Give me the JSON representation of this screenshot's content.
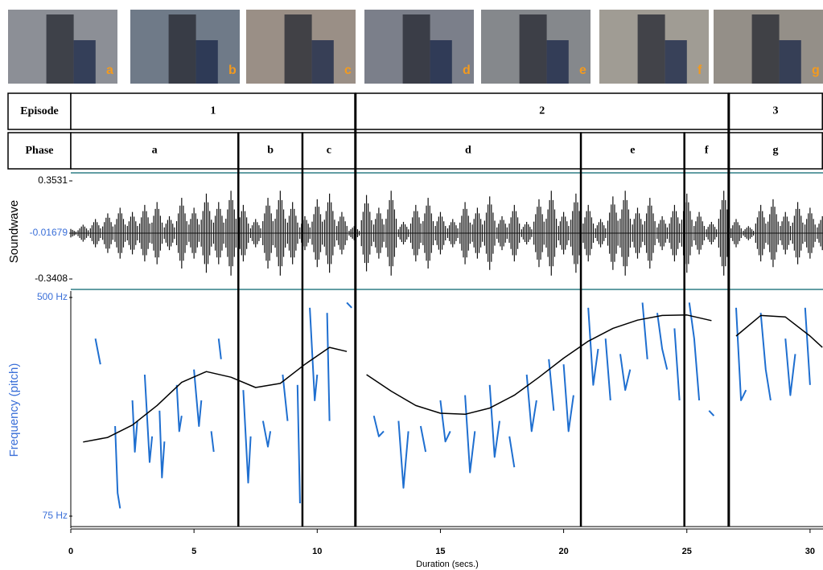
{
  "chart_data": {
    "type": "soundwave-pitch",
    "photos": [
      "a",
      "b",
      "c",
      "d",
      "e",
      "f",
      "g"
    ],
    "episode_header": "Episode",
    "phase_header": "Phase",
    "episodes": [
      {
        "label": "1",
        "start": 0,
        "end": 11.55
      },
      {
        "label": "2",
        "start": 11.55,
        "end": 26.7
      },
      {
        "label": "3",
        "start": 26.7,
        "end": 30.5
      }
    ],
    "phases": [
      {
        "label": "a",
        "start": 0,
        "end": 6.8
      },
      {
        "label": "b",
        "start": 6.8,
        "end": 9.4
      },
      {
        "label": "c",
        "start": 9.4,
        "end": 11.55
      },
      {
        "label": "d",
        "start": 11.55,
        "end": 20.7
      },
      {
        "label": "e",
        "start": 20.7,
        "end": 24.9
      },
      {
        "label": "f",
        "start": 24.9,
        "end": 26.7
      },
      {
        "label": "g",
        "start": 26.7,
        "end": 30.5
      }
    ],
    "xlabel": "Duration (secs.)",
    "xlim": [
      0,
      30.5
    ],
    "xticks": [
      0,
      5,
      10,
      15,
      20,
      25,
      30
    ],
    "soundwave": {
      "ylabel": "Soundwave",
      "color": "#111111",
      "ylim": [
        -0.3408,
        0.3531
      ],
      "yticks": [
        0.3531,
        -0.01679,
        -0.3408
      ],
      "center": -0.01679,
      "x": [
        0,
        0.5,
        1,
        1.5,
        2,
        2.5,
        3,
        3.5,
        4,
        4.5,
        5,
        5.5,
        6,
        6.5,
        7,
        7.5,
        8,
        8.5,
        9,
        9.5,
        10,
        10.5,
        11,
        11.5,
        12,
        12.5,
        13,
        13.5,
        14,
        14.5,
        15,
        15.5,
        16,
        16.5,
        17,
        17.5,
        18,
        18.5,
        19,
        19.5,
        20,
        20.5,
        21,
        21.5,
        22,
        22.5,
        23,
        23.5,
        24,
        24.5,
        25,
        25.5,
        26,
        26.5,
        27,
        27.5,
        28,
        28.5,
        29,
        29.5,
        30,
        30.5
      ],
      "values": [
        0.03,
        0.06,
        0.1,
        0.14,
        0.18,
        0.15,
        0.2,
        0.22,
        0.12,
        0.25,
        0.18,
        0.28,
        0.22,
        0.3,
        0.2,
        0.1,
        0.25,
        0.3,
        0.22,
        0.12,
        0.24,
        0.28,
        0.15,
        0.05,
        0.27,
        0.18,
        0.3,
        0.08,
        0.2,
        0.25,
        0.15,
        0.1,
        0.22,
        0.18,
        0.26,
        0.12,
        0.2,
        0.08,
        0.24,
        0.3,
        0.15,
        0.28,
        0.2,
        0.1,
        0.26,
        0.3,
        0.18,
        0.25,
        0.12,
        0.2,
        0.28,
        0.15,
        0.08,
        0.3,
        0.1,
        0.05,
        0.2,
        0.24,
        0.15,
        0.22,
        0.18,
        0.12
      ]
    },
    "pitch": {
      "ylabel": "Frequency (pitch)",
      "color": "#1f6fd0",
      "ylim": [
        75,
        500
      ],
      "yticks": [
        {
          "value": 500,
          "label": "500 Hz"
        },
        {
          "value": 75,
          "label": "75 Hz"
        }
      ],
      "x": [
        1.0,
        1.2,
        null,
        1.8,
        1.9,
        2.0,
        null,
        2.5,
        2.6,
        2.7,
        null,
        3.0,
        3.2,
        3.3,
        null,
        3.6,
        3.7,
        3.8,
        null,
        4.3,
        4.4,
        4.5,
        null,
        5.0,
        5.2,
        5.3,
        null,
        5.7,
        5.8,
        null,
        6.0,
        6.1,
        null,
        7.0,
        7.2,
        7.3,
        null,
        7.8,
        8.0,
        8.1,
        null,
        8.6,
        8.8,
        null,
        9.2,
        9.3,
        null,
        9.7,
        9.9,
        10.0,
        null,
        10.4,
        10.5,
        null,
        11.2,
        11.4,
        null,
        12.3,
        12.5,
        12.7,
        null,
        13.3,
        13.5,
        13.7,
        null,
        14.2,
        14.4,
        null,
        15.0,
        15.2,
        15.4,
        null,
        16.0,
        16.2,
        16.4,
        null,
        17.0,
        17.2,
        17.4,
        null,
        17.8,
        18.0,
        null,
        18.5,
        18.7,
        18.9,
        null,
        19.4,
        19.6,
        null,
        20.0,
        20.2,
        20.4,
        null,
        21.0,
        21.2,
        21.4,
        null,
        21.7,
        21.9,
        null,
        22.3,
        22.5,
        22.7,
        null,
        23.2,
        23.4,
        null,
        23.8,
        24.0,
        24.2,
        null,
        24.5,
        24.7,
        null,
        25.1,
        25.3,
        25.5,
        null,
        25.9,
        26.1,
        null,
        27.0,
        27.2,
        27.4,
        null,
        28.0,
        28.2,
        28.4,
        null,
        29.0,
        29.2,
        29.4,
        null,
        29.8,
        30.0
      ],
      "values": [
        420,
        370,
        null,
        250,
        120,
        90,
        null,
        300,
        200,
        260,
        null,
        350,
        180,
        230,
        null,
        280,
        150,
        220,
        null,
        330,
        240,
        270,
        null,
        360,
        250,
        300,
        null,
        240,
        200,
        null,
        420,
        380,
        null,
        320,
        140,
        230,
        null,
        260,
        210,
        240,
        null,
        350,
        260,
        null,
        330,
        100,
        null,
        480,
        300,
        350,
        null,
        470,
        260,
        null,
        490,
        480,
        null,
        270,
        230,
        240,
        null,
        260,
        130,
        240,
        null,
        250,
        200,
        null,
        300,
        220,
        240,
        null,
        310,
        160,
        240,
        null,
        330,
        190,
        260,
        null,
        230,
        170,
        null,
        350,
        240,
        300,
        null,
        380,
        280,
        null,
        370,
        240,
        310,
        null,
        480,
        330,
        400,
        null,
        420,
        300,
        null,
        390,
        320,
        360,
        null,
        490,
        380,
        null,
        470,
        400,
        360,
        null,
        440,
        300,
        null,
        490,
        420,
        300,
        null,
        280,
        270,
        null,
        480,
        300,
        320,
        null,
        470,
        360,
        300,
        null,
        420,
        310,
        390,
        null,
        480,
        330
      ],
      "trend_color": "#000000",
      "trend_x": [
        0.5,
        1.5,
        2.5,
        3.5,
        4.5,
        5.5,
        6.5,
        7.5,
        8.5,
        9.5,
        10.5,
        11.2,
        null,
        12.0,
        13.0,
        14.0,
        15.0,
        16.0,
        17.0,
        18.0,
        19.0,
        20.0,
        21.0,
        22.0,
        23.0,
        24.0,
        25.0,
        26.0,
        null,
        27.0,
        28.0,
        29.0,
        30.0,
        30.5
      ],
      "trend": [
        219,
        228,
        252,
        290,
        335,
        356,
        345,
        325,
        333,
        370,
        403,
        395,
        null,
        350,
        318,
        290,
        275,
        273,
        285,
        310,
        345,
        382,
        415,
        440,
        456,
        465,
        466,
        455,
        null,
        425,
        465,
        462,
        425,
        403
      ]
    }
  }
}
